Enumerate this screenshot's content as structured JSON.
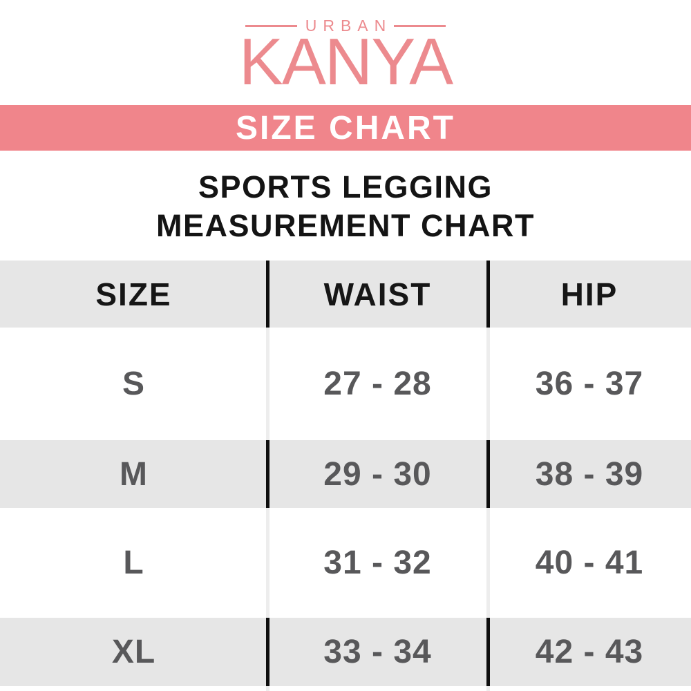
{
  "brand": {
    "top_label": "URBAN",
    "name": "KANYA"
  },
  "banner": {
    "title": "SIZE CHART"
  },
  "heading": {
    "line1": "SPORTS LEGGING",
    "line2": "MEASUREMENT CHART"
  },
  "table": {
    "columns": [
      "SIZE",
      "WAIST",
      "HIP"
    ],
    "rows": [
      {
        "size": "S",
        "waist": "27 - 28",
        "hip": "36 - 37"
      },
      {
        "size": "M",
        "waist": "29 - 30",
        "hip": "38 - 39"
      },
      {
        "size": "L",
        "waist": "31 - 32",
        "hip": "40 - 41"
      },
      {
        "size": "XL",
        "waist": "33 - 34",
        "hip": "42 - 43"
      }
    ]
  },
  "colors": {
    "brand_pink": "#EC8A8E",
    "banner_pink": "#F0858B",
    "band_gray": "#E6E6E6",
    "divider_black": "#0E0E0E",
    "divider_light": "#EDEDED",
    "data_text_gray": "#58585A",
    "heading_text": "#141414",
    "banner_text": "#FFFFFF"
  },
  "chart_data": {
    "type": "table",
    "title": "SPORTS LEGGING MEASUREMENT CHART",
    "subtitle": "SIZE CHART",
    "brand": "URBAN KANYA",
    "columns": [
      "SIZE",
      "WAIST",
      "HIP"
    ],
    "rows": [
      [
        "S",
        "27 - 28",
        "36 - 37"
      ],
      [
        "M",
        "29 - 30",
        "38 - 39"
      ],
      [
        "L",
        "31 - 32",
        "40 - 41"
      ],
      [
        "XL",
        "33 - 34",
        "42 - 43"
      ]
    ],
    "units": "inches (implied)",
    "layout": {
      "striped_rows": true,
      "stripe_color": "#E6E6E6",
      "column_dividers": true
    }
  }
}
